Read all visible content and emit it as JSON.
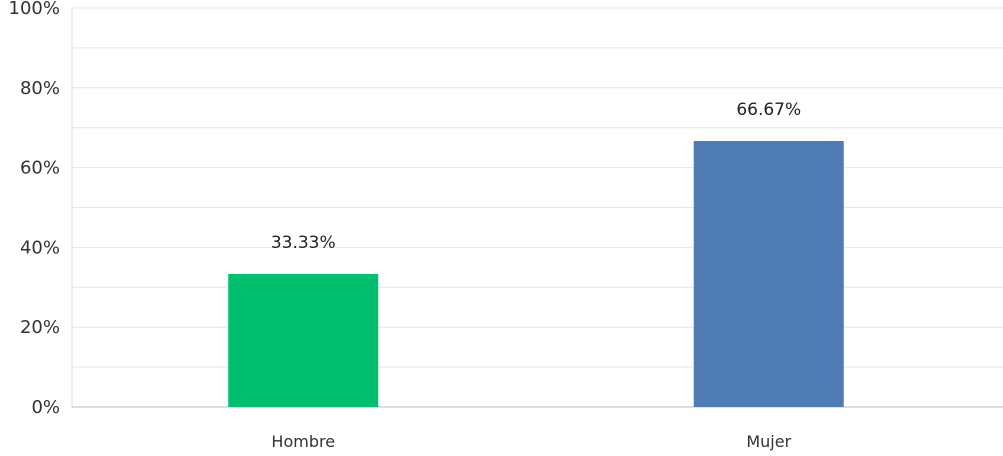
{
  "chart_data": {
    "type": "bar",
    "title": "",
    "xlabel": "",
    "ylabel": "",
    "categories": [
      "Hombre",
      "Mujer"
    ],
    "values": [
      33.33,
      66.67
    ],
    "value_labels": [
      "33.33%",
      "66.67%"
    ],
    "ylim": [
      0,
      100
    ],
    "y_ticks": [
      0,
      20,
      40,
      60,
      80,
      100
    ],
    "y_tick_labels": [
      "0%",
      "20%",
      "40%",
      "60%",
      "80%",
      "100%"
    ],
    "bar_colors": [
      "#00bf6f",
      "#507cb6"
    ],
    "grid": true,
    "legend": false
  }
}
